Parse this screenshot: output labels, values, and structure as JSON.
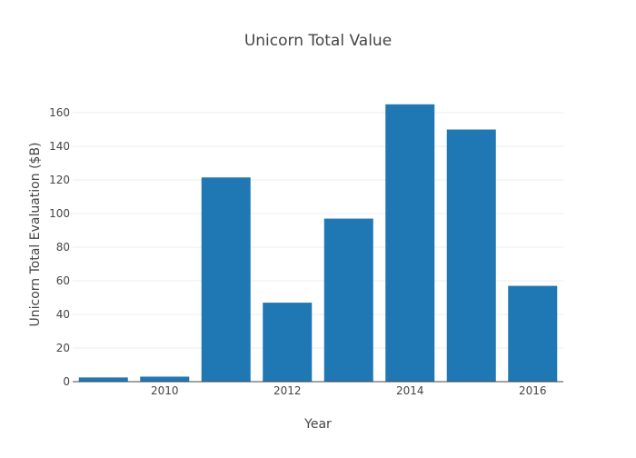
{
  "chart_data": {
    "type": "bar",
    "title": "Unicorn Total Value",
    "xlabel": "Year",
    "ylabel": "Unicorn Total Evaluation ($B)",
    "x": [
      2009,
      2010,
      2011,
      2012,
      2013,
      2014,
      2015,
      2016
    ],
    "values": [
      2.5,
      3,
      121.5,
      47,
      97,
      165,
      150,
      57
    ],
    "x_ticks": [
      2010,
      2012,
      2014,
      2016
    ],
    "y_ticks": [
      0,
      20,
      40,
      60,
      80,
      100,
      120,
      140,
      160
    ],
    "xlim": [
      2008.5,
      2016.5
    ],
    "ylim": [
      0,
      173
    ],
    "bar_color": "#1f77b4",
    "grid": true,
    "legend": "none"
  }
}
